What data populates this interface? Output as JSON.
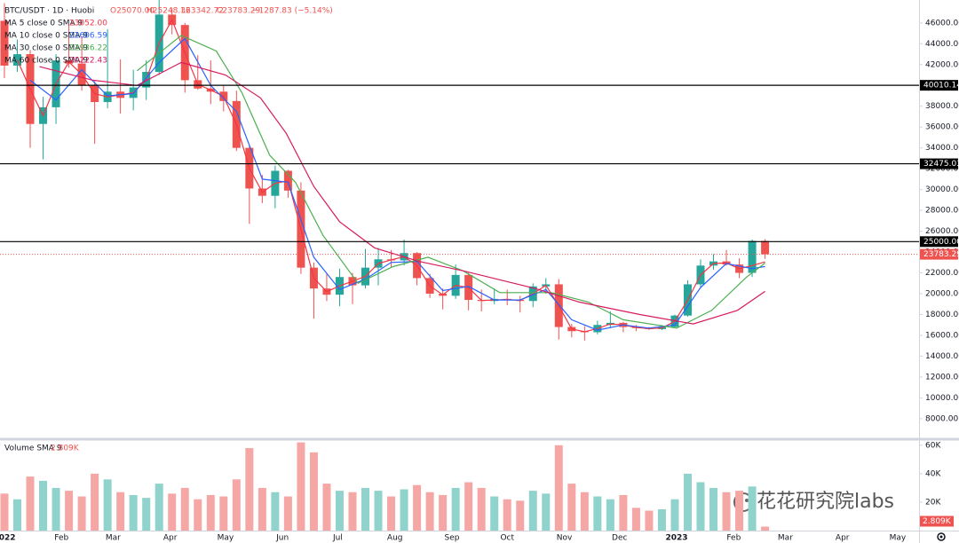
{
  "header": {
    "symbol": "BTC/USDT · 1D · Huobi",
    "open": "O25070.00",
    "high": "H25248.36",
    "low": "L23342.72",
    "close": "C23783.29",
    "change": "−1287.83 (−5.14%)"
  },
  "watermark": "花花研究院labs",
  "chart_data": [
    {
      "type": "candlestick",
      "colors": {
        "up": "#26a69a",
        "down": "#ef5350"
      },
      "x": [
        0,
        7,
        14,
        21,
        28,
        35,
        42,
        49,
        56,
        63,
        70,
        77,
        84,
        91,
        98,
        105,
        112,
        119,
        126,
        133,
        140,
        147,
        154,
        161,
        168,
        175,
        182,
        189,
        196,
        203,
        210,
        217,
        224,
        231,
        238,
        245,
        252,
        259,
        266,
        273,
        280,
        287,
        294,
        301,
        308,
        315,
        322,
        329,
        336,
        343,
        350,
        357,
        364,
        371,
        378,
        385,
        392,
        399,
        406,
        413
      ],
      "open": [
        46200,
        41900,
        43000,
        36300,
        37900,
        42400,
        42100,
        40000,
        38400,
        39400,
        38800,
        39800,
        41300,
        46800,
        45800,
        40500,
        39700,
        39400,
        38500,
        34000,
        30100,
        29400,
        31800,
        29900,
        22500,
        20500,
        19900,
        21600,
        20800,
        22500,
        23300,
        23200,
        23900,
        21500,
        20000,
        19800,
        21800,
        19400,
        19300,
        19500,
        19400,
        19300,
        20700,
        20900,
        16800,
        16400,
        16300,
        17000,
        17200,
        16800,
        16700,
        16600,
        16800,
        17900,
        20900,
        22700,
        23100,
        22800,
        22000,
        25070
      ],
      "high": [
        47900,
        44400,
        43400,
        38900,
        43000,
        45800,
        44700,
        40400,
        45400,
        42500,
        41500,
        42400,
        48200,
        47400,
        46000,
        42900,
        42400,
        40000,
        39500,
        34200,
        31400,
        32300,
        31900,
        30700,
        23000,
        21900,
        22400,
        22000,
        24300,
        24400,
        24200,
        25200,
        24000,
        21900,
        20500,
        22800,
        22000,
        20400,
        20500,
        20400,
        19800,
        21000,
        21500,
        21400,
        17100,
        16900,
        17400,
        18300,
        17300,
        17000,
        16800,
        17000,
        18000,
        21300,
        23300,
        23800,
        24200,
        23400,
        25200,
        25248.36
      ],
      "low": [
        40700,
        41300,
        34000,
        32900,
        36300,
        41700,
        39500,
        34400,
        37800,
        37300,
        37600,
        38600,
        41000,
        44900,
        39300,
        39600,
        38200,
        37500,
        33700,
        26700,
        28700,
        28200,
        29200,
        21900,
        17600,
        19300,
        18800,
        19000,
        20500,
        20800,
        22500,
        22700,
        20800,
        19600,
        18500,
        19500,
        18400,
        18300,
        19000,
        18900,
        18200,
        18700,
        20000,
        15600,
        15800,
        15500,
        16100,
        16700,
        16300,
        16400,
        16500,
        16500,
        16700,
        17800,
        20500,
        22300,
        22700,
        21500,
        21600,
        23342.72
      ],
      "close": [
        41900,
        43000,
        36300,
        37900,
        42400,
        42100,
        40000,
        38400,
        39400,
        38800,
        39800,
        41300,
        46800,
        45800,
        40500,
        39700,
        39400,
        38500,
        34000,
        30100,
        29400,
        31800,
        29900,
        22500,
        20500,
        19900,
        21600,
        20800,
        22500,
        23300,
        23200,
        23900,
        21500,
        20000,
        19800,
        21800,
        19400,
        19300,
        19500,
        19400,
        19300,
        20700,
        20900,
        16800,
        16400,
        16300,
        17000,
        17200,
        16800,
        16700,
        16600,
        16800,
        17900,
        20900,
        22700,
        23100,
        22800,
        22000,
        25070,
        23783.29
      ],
      "series": [
        {
          "name": "MA 5 close 0 SMA 9",
          "color": "#f23645",
          "legend_value": "23052.00",
          "x": [
            7,
            14,
            21,
            28,
            35,
            42,
            49,
            56,
            63,
            70,
            77,
            84,
            91,
            98,
            105,
            112,
            119,
            126,
            133,
            140,
            147,
            154,
            161,
            168,
            175,
            182,
            189,
            196,
            203,
            210,
            217,
            224,
            231,
            238,
            245,
            252,
            259,
            266,
            273,
            280,
            287,
            294,
            301,
            308,
            315,
            322,
            329,
            336,
            343,
            350,
            357,
            364,
            371,
            378,
            385,
            392,
            399,
            406,
            413
          ],
          "values": [
            42450,
            39650,
            37100,
            40150,
            42250,
            41050,
            39200,
            38900,
            39100,
            39300,
            40550,
            44050,
            46300,
            43150,
            40100,
            39550,
            38950,
            36250,
            32050,
            29750,
            30600,
            30850,
            26200,
            21500,
            20200,
            20750,
            21200,
            21650,
            22900,
            23250,
            23550,
            22700,
            20750,
            19900,
            20800,
            20600,
            19350,
            19400,
            19450,
            19350,
            20000,
            20800,
            18850,
            16600,
            16350,
            16650,
            17100,
            17000,
            16750,
            16650,
            16700,
            17350,
            19400,
            21800,
            22900,
            22950,
            22400,
            22700,
            23052
          ]
        },
        {
          "name": "MA 10 close 0 SMA 9",
          "color": "#2962ff",
          "legend_value": "22606.59",
          "x": [
            14,
            28,
            42,
            56,
            70,
            84,
            98,
            112,
            126,
            140,
            154,
            168,
            182,
            196,
            210,
            224,
            238,
            252,
            266,
            280,
            294,
            308,
            322,
            336,
            350,
            364,
            378,
            392,
            406,
            413
          ],
          "values": [
            40500,
            38600,
            41500,
            39000,
            39200,
            42200,
            44500,
            40000,
            37500,
            31000,
            30700,
            23500,
            20400,
            21400,
            23000,
            23100,
            20300,
            20700,
            19400,
            19400,
            20400,
            17500,
            16500,
            17000,
            16700,
            17000,
            20600,
            22900,
            22400,
            22606.59
          ]
        },
        {
          "name": "MA 30 close 0 SMA 9",
          "color": "#4caf50",
          "legend_value": "22936.22",
          "x": [
            72,
            96,
            115,
            129,
            144,
            158,
            173,
            192,
            211,
            230,
            249,
            269,
            297,
            317,
            336,
            365,
            384,
            403,
            413
          ],
          "values": [
            41400,
            44800,
            43300,
            39300,
            33300,
            30700,
            25600,
            21000,
            22600,
            23500,
            22200,
            20100,
            20100,
            19200,
            17500,
            16700,
            18400,
            21600,
            22936.22
          ]
        },
        {
          "name": "MA 60 close 0 SMA 9",
          "color": "#d81b60",
          "legend_value": "20222.43",
          "x": [
            19,
            48,
            72,
            96,
            120,
            139,
            153,
            168,
            182,
            201,
            225,
            249,
            288,
            312,
            345,
            374,
            398,
            413
          ],
          "values": [
            41800,
            40500,
            40000,
            42200,
            41000,
            38800,
            35400,
            30300,
            26900,
            24400,
            23100,
            22200,
            20500,
            19200,
            18000,
            17100,
            18400,
            20222.43
          ]
        }
      ],
      "hlines": [
        {
          "value": 40010.14,
          "label": "40010.14",
          "color": "#000000"
        },
        {
          "value": 32475.03,
          "label": "32475.03",
          "color": "#000000"
        },
        {
          "value": 25000,
          "label": "25000.00",
          "color": "#000000"
        }
      ],
      "price_line": {
        "value": 23783.29,
        "label": "23783.29",
        "color": "#ef5350"
      },
      "xlim": [
        -2.4,
        496.6
      ],
      "xticks": [
        {
          "value": 0,
          "label": "2022"
        },
        {
          "value": 31,
          "label": "Feb"
        },
        {
          "value": 59,
          "label": "Mar"
        },
        {
          "value": 90,
          "label": "Apr"
        },
        {
          "value": 120,
          "label": "May"
        },
        {
          "value": 151,
          "label": "Jun"
        },
        {
          "value": 181,
          "label": "Jul"
        },
        {
          "value": 212,
          "label": "Aug"
        },
        {
          "value": 243,
          "label": "Sep"
        },
        {
          "value": 273,
          "label": "Oct"
        },
        {
          "value": 304,
          "label": "Nov"
        },
        {
          "value": 334,
          "label": "Dec"
        },
        {
          "value": 365,
          "label": "2023"
        },
        {
          "value": 396,
          "label": "Feb"
        },
        {
          "value": 424,
          "label": "Mar"
        },
        {
          "value": 455,
          "label": "Apr"
        },
        {
          "value": 485,
          "label": "May"
        }
      ],
      "ylim": [
        6200,
        48200
      ],
      "yticks": [
        {
          "value": 46000,
          "label": "46000.00"
        },
        {
          "value": 44000,
          "label": "44000.00"
        },
        {
          "value": 42000,
          "label": "42000.00"
        },
        {
          "value": 40000,
          "label": "40000.00"
        },
        {
          "value": 38000,
          "label": "38000.00"
        },
        {
          "value": 36000,
          "label": "36000.00"
        },
        {
          "value": 34000,
          "label": "34000.00"
        },
        {
          "value": 32000,
          "label": "32000.00"
        },
        {
          "value": 30000,
          "label": "30000.00"
        },
        {
          "value": 28000,
          "label": "28000.00"
        },
        {
          "value": 26000,
          "label": "26000.00"
        },
        {
          "value": 24000,
          "label": "24000.00"
        },
        {
          "value": 22000,
          "label": "22000.00"
        },
        {
          "value": 20000,
          "label": "20000.00"
        },
        {
          "value": 18000,
          "label": "18000.00"
        },
        {
          "value": 16000,
          "label": "16000.00"
        },
        {
          "value": 14000,
          "label": "14000.00"
        },
        {
          "value": 12000,
          "label": "12000.00"
        },
        {
          "value": 10000,
          "label": "10000.00"
        },
        {
          "value": 8000,
          "label": "8000.00"
        }
      ],
      "grid": false
    },
    {
      "type": "bar",
      "title": "Volume SMA 9",
      "legend_value": "2.809K",
      "colors": {
        "up": "#8fd3cc",
        "down": "#f5a7a5"
      },
      "x": [
        0,
        7,
        14,
        21,
        28,
        35,
        42,
        49,
        56,
        63,
        70,
        77,
        84,
        91,
        98,
        105,
        112,
        119,
        126,
        133,
        140,
        147,
        154,
        161,
        168,
        175,
        182,
        189,
        196,
        203,
        210,
        217,
        224,
        231,
        238,
        245,
        252,
        259,
        266,
        273,
        280,
        287,
        294,
        301,
        308,
        315,
        322,
        329,
        336,
        343,
        350,
        357,
        364,
        371,
        378,
        385,
        392,
        399,
        406,
        413
      ],
      "values": [
        26000,
        22000,
        38000,
        35000,
        30000,
        28000,
        24000,
        40000,
        36000,
        27000,
        25000,
        23000,
        33000,
        26000,
        30000,
        22000,
        25000,
        24000,
        36000,
        58000,
        30000,
        27000,
        24000,
        62000,
        55000,
        33000,
        28000,
        27000,
        30000,
        28000,
        24000,
        29000,
        32000,
        27000,
        25000,
        30000,
        34000,
        30000,
        24000,
        22000,
        21000,
        28000,
        26000,
        60000,
        33000,
        27000,
        24000,
        22000,
        25000,
        16000,
        14000,
        15000,
        22000,
        40000,
        34000,
        30000,
        27000,
        28000,
        31000,
        2809
      ],
      "xlim": [
        -2.4,
        496.6
      ],
      "ylim": [
        0,
        63000
      ],
      "yticks": [
        {
          "value": 60000,
          "label": "60K"
        },
        {
          "value": 40000,
          "label": "40K"
        },
        {
          "value": 20000,
          "label": "20K"
        }
      ]
    }
  ]
}
